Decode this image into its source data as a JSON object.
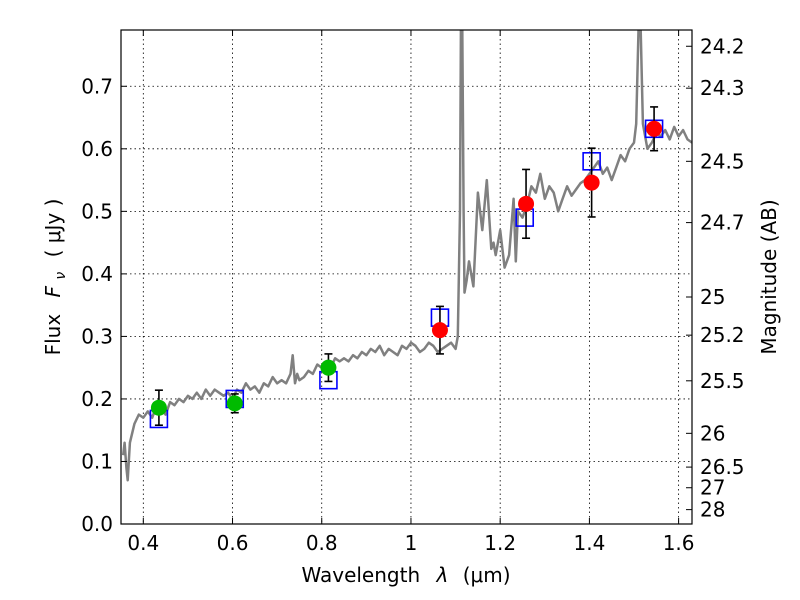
{
  "chart_data": {
    "type": "scatter",
    "title": "",
    "xlabel_text": "Wavelength",
    "xlabel_symbol": "λ",
    "xlabel_unit": "(μm)",
    "ylabel_text": "Flux",
    "ylabel_symbol": "F",
    "ylabel_symbol_sub": "ν",
    "ylabel_unit": "( μJy )",
    "y2label": "Magnitude (AB)",
    "xlim": [
      0.35,
      1.63
    ],
    "ylim": [
      0.0,
      0.79
    ],
    "grid": true,
    "x_ticks": [
      0.4,
      0.6,
      0.8,
      1.0,
      1.2,
      1.4,
      1.6
    ],
    "x_tick_labels": [
      "0.4",
      "0.6",
      "0.8",
      "1",
      "1.2",
      "1.4",
      "1.6"
    ],
    "y_ticks": [
      0.0,
      0.1,
      0.2,
      0.3,
      0.4,
      0.5,
      0.6,
      0.7
    ],
    "y_tick_labels": [
      "0.0",
      "0.1",
      "0.2",
      "0.3",
      "0.4",
      "0.5",
      "0.6",
      "0.7"
    ],
    "magnitude_ticks": [
      {
        "label": "24.2",
        "flux": 0.764
      },
      {
        "label": "24.3",
        "flux": 0.697
      },
      {
        "label": "24.5",
        "flux": 0.58
      },
      {
        "label": "24.7",
        "flux": 0.482
      },
      {
        "label": "25",
        "flux": 0.363
      },
      {
        "label": "25.2",
        "flux": 0.302
      },
      {
        "label": "25.5",
        "flux": 0.229
      },
      {
        "label": "26",
        "flux": 0.145
      },
      {
        "label": "26.5",
        "flux": 0.091
      },
      {
        "label": "27",
        "flux": 0.058
      },
      {
        "label": "28",
        "flux": 0.023
      }
    ],
    "colors": {
      "spectrum": "#808080",
      "model": "#0000ff",
      "optical": "#00bb00",
      "nir": "#ff0000",
      "errorbar": "#000000"
    },
    "series": [
      {
        "name": "spectrum",
        "style": "line",
        "x": [
          0.355,
          0.358,
          0.362,
          0.365,
          0.37,
          0.38,
          0.39,
          0.4,
          0.41,
          0.42,
          0.43,
          0.44,
          0.45,
          0.46,
          0.47,
          0.48,
          0.49,
          0.5,
          0.51,
          0.52,
          0.53,
          0.54,
          0.55,
          0.56,
          0.57,
          0.58,
          0.59,
          0.6,
          0.61,
          0.62,
          0.63,
          0.64,
          0.65,
          0.66,
          0.67,
          0.68,
          0.69,
          0.7,
          0.71,
          0.72,
          0.73,
          0.735,
          0.74,
          0.745,
          0.75,
          0.76,
          0.77,
          0.78,
          0.79,
          0.8,
          0.81,
          0.82,
          0.83,
          0.84,
          0.85,
          0.86,
          0.87,
          0.88,
          0.89,
          0.9,
          0.91,
          0.92,
          0.93,
          0.94,
          0.95,
          0.96,
          0.97,
          0.98,
          0.99,
          1.0,
          1.01,
          1.02,
          1.03,
          1.04,
          1.05,
          1.06,
          1.07,
          1.08,
          1.09,
          1.1,
          1.105,
          1.11,
          1.112,
          1.115,
          1.118,
          1.12,
          1.125,
          1.13,
          1.14,
          1.15,
          1.16,
          1.17,
          1.18,
          1.185,
          1.19,
          1.2,
          1.21,
          1.22,
          1.23,
          1.235,
          1.24,
          1.25,
          1.26,
          1.27,
          1.28,
          1.29,
          1.3,
          1.31,
          1.32,
          1.33,
          1.34,
          1.35,
          1.36,
          1.37,
          1.38,
          1.39,
          1.4,
          1.41,
          1.42,
          1.43,
          1.44,
          1.45,
          1.46,
          1.47,
          1.48,
          1.49,
          1.5,
          1.505,
          1.51,
          1.515,
          1.52,
          1.53,
          1.54,
          1.55,
          1.56,
          1.57,
          1.58,
          1.59,
          1.6,
          1.61,
          1.62,
          1.63
        ],
        "y": [
          0.11,
          0.13,
          0.09,
          0.07,
          0.13,
          0.16,
          0.175,
          0.17,
          0.18,
          0.17,
          0.19,
          0.185,
          0.175,
          0.195,
          0.19,
          0.2,
          0.195,
          0.205,
          0.2,
          0.21,
          0.2,
          0.215,
          0.205,
          0.215,
          0.21,
          0.205,
          0.21,
          0.2,
          0.215,
          0.21,
          0.225,
          0.215,
          0.22,
          0.21,
          0.225,
          0.22,
          0.235,
          0.225,
          0.23,
          0.225,
          0.24,
          0.27,
          0.225,
          0.24,
          0.23,
          0.235,
          0.245,
          0.24,
          0.255,
          0.25,
          0.255,
          0.25,
          0.265,
          0.26,
          0.265,
          0.26,
          0.27,
          0.265,
          0.275,
          0.27,
          0.28,
          0.275,
          0.285,
          0.27,
          0.28,
          0.275,
          0.27,
          0.285,
          0.28,
          0.29,
          0.285,
          0.275,
          0.28,
          0.29,
          0.285,
          0.275,
          0.28,
          0.285,
          0.29,
          0.28,
          0.3,
          0.5,
          0.79,
          0.79,
          0.5,
          0.37,
          0.39,
          0.42,
          0.38,
          0.53,
          0.47,
          0.55,
          0.44,
          0.45,
          0.43,
          0.47,
          0.41,
          0.43,
          0.52,
          0.42,
          0.5,
          0.49,
          0.51,
          0.54,
          0.53,
          0.56,
          0.52,
          0.54,
          0.53,
          0.5,
          0.52,
          0.54,
          0.525,
          0.535,
          0.545,
          0.55,
          0.56,
          0.57,
          0.58,
          0.56,
          0.57,
          0.55,
          0.57,
          0.59,
          0.58,
          0.6,
          0.61,
          0.64,
          0.79,
          0.79,
          0.64,
          0.6,
          0.61,
          0.625,
          0.62,
          0.63,
          0.615,
          0.635,
          0.62,
          0.63,
          0.615,
          0.61
        ]
      },
      {
        "name": "model",
        "style": "open-square",
        "x": [
          0.435,
          0.605,
          0.815,
          1.065,
          1.255,
          1.405,
          1.545
        ],
        "y": [
          0.168,
          0.2,
          0.23,
          0.33,
          0.49,
          0.58,
          0.632
        ]
      },
      {
        "name": "optical",
        "style": "filled-circle",
        "x": [
          0.435,
          0.605,
          0.815
        ],
        "y": [
          0.186,
          0.193,
          0.25
        ],
        "yerr": [
          0.028,
          0.015,
          0.022
        ]
      },
      {
        "name": "nir",
        "style": "filled-circle",
        "x": [
          1.065,
          1.258,
          1.405,
          1.545
        ],
        "y": [
          0.31,
          0.512,
          0.546,
          0.632
        ],
        "yerr": [
          0.038,
          0.055,
          0.055,
          0.035
        ]
      }
    ]
  }
}
